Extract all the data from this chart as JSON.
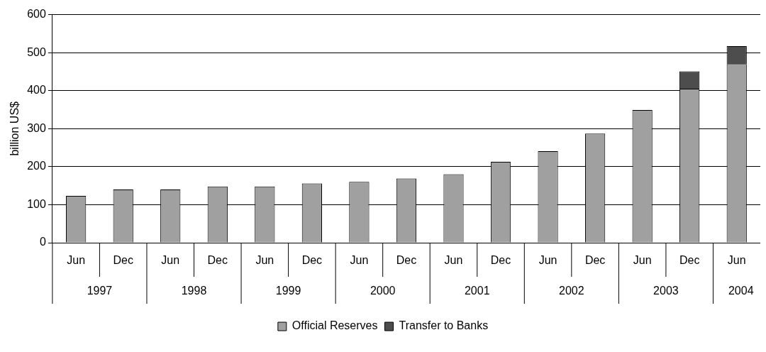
{
  "chart_data": {
    "type": "bar",
    "stacked": true,
    "ylabel": "billion US$",
    "categories": [
      "Jun",
      "Dec",
      "Jun",
      "Dec",
      "Jun",
      "Dec",
      "Jun",
      "Dec",
      "Jun",
      "Dec",
      "Jun",
      "Dec",
      "Jun",
      "Dec",
      "Jun"
    ],
    "annotations": [
      "1997",
      "1998",
      "1999",
      "2000",
      "2001",
      "2002",
      "2003",
      "2004"
    ],
    "series": [
      {
        "name": "Official Reserves",
        "color": "#a0a0a0",
        "values": [
          123,
          140,
          140,
          148,
          148,
          156,
          160,
          169,
          180,
          213,
          241,
          287,
          349,
          405,
          470
        ]
      },
      {
        "name": "Transfer to Banks",
        "color": "#4d4d4d",
        "values": [
          null,
          null,
          null,
          null,
          null,
          null,
          null,
          null,
          null,
          null,
          null,
          null,
          null,
          46,
          47
        ]
      }
    ],
    "ylim": [
      0,
      600
    ],
    "yticks": [
      0,
      100,
      200,
      300,
      400,
      500,
      600
    ],
    "grid": "y",
    "legend": "bottom"
  }
}
